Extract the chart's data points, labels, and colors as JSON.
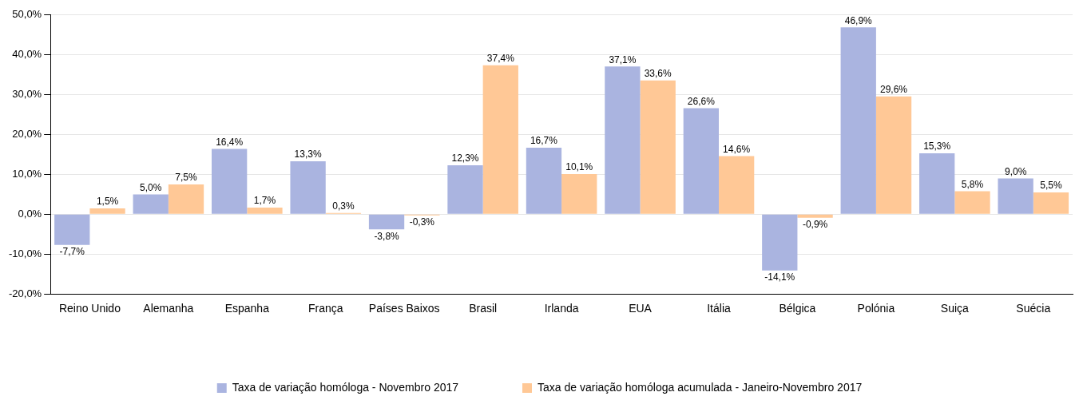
{
  "chart_data": {
    "type": "bar",
    "categories": [
      "Reino Unido",
      "Alemanha",
      "Espanha",
      "França",
      "Países Baixos",
      "Brasil",
      "Irlanda",
      "EUA",
      "Itália",
      "Bélgica",
      "Polónia",
      "Suiça",
      "Suécia"
    ],
    "series": [
      {
        "name": "Taxa de variação homóloga - Novembro 2017",
        "color": "#aab4e0",
        "values": [
          -7.7,
          5.0,
          16.4,
          13.3,
          -3.8,
          12.3,
          16.7,
          37.1,
          26.6,
          -14.1,
          46.9,
          15.3,
          9.0
        ],
        "value_labels": [
          "-7,7%",
          "5,0%",
          "16,4%",
          "13,3%",
          "-3,8%",
          "12,3%",
          "16,7%",
          "37,1%",
          "26,6%",
          "-14,1%",
          "46,9%",
          "15,3%",
          "9,0%"
        ]
      },
      {
        "name": "Taxa de variação homóloga acumulada - Janeiro-Novembro 2017",
        "color": "#ffc896",
        "values": [
          1.5,
          7.5,
          1.7,
          0.3,
          -0.3,
          37.4,
          10.1,
          33.6,
          14.6,
          -0.9,
          29.6,
          5.8,
          5.5
        ],
        "value_labels": [
          "1,5%",
          "7,5%",
          "1,7%",
          "0,3%",
          "-0,3%",
          "37,4%",
          "10,1%",
          "33,6%",
          "14,6%",
          "-0,9%",
          "29,6%",
          "5,8%",
          "5,5%"
        ]
      }
    ],
    "ylim": [
      -20,
      50
    ],
    "yticks": [
      {
        "value": -20,
        "label": "-20,0%"
      },
      {
        "value": -10,
        "label": "-10,0%"
      },
      {
        "value": 0,
        "label": "0,0%"
      },
      {
        "value": 10,
        "label": "10,0%"
      },
      {
        "value": 20,
        "label": "20,0%"
      },
      {
        "value": 30,
        "label": "30,0%"
      },
      {
        "value": 40,
        "label": "40,0%"
      },
      {
        "value": 50,
        "label": "50,0%"
      }
    ],
    "grid": "y",
    "legend": "bottom"
  }
}
